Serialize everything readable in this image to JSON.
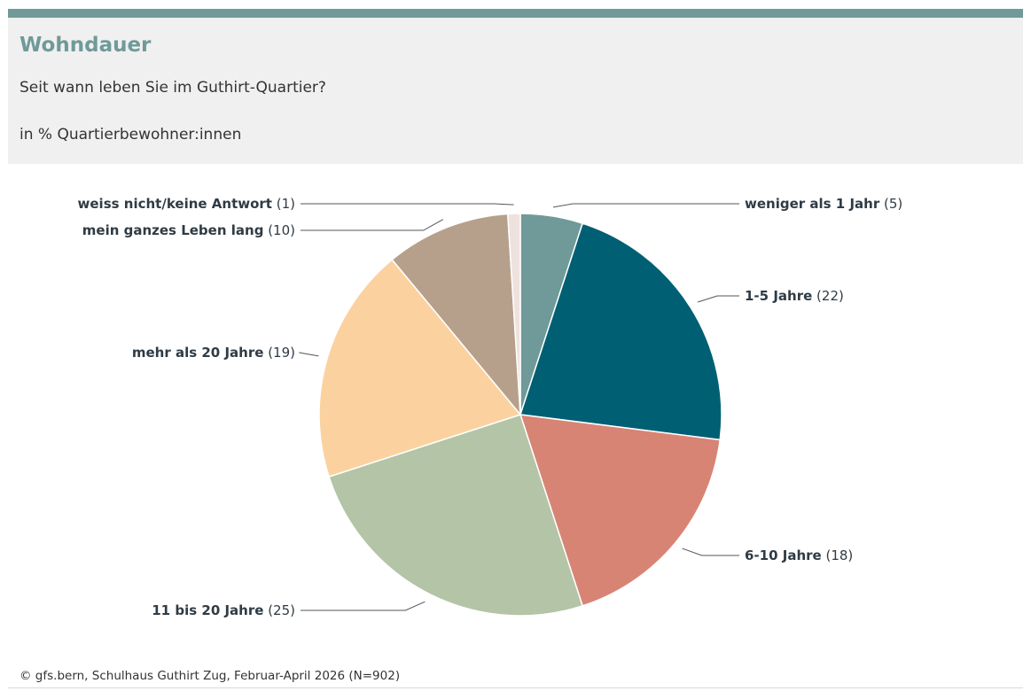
{
  "header": {
    "title": "Wohndauer",
    "subtitle": "Seit wann leben Sie im Guthirt-Quartier?",
    "unit": "in % Quartierbewohner:innen"
  },
  "footer": {
    "source": "© gfs.bern, Schulhaus Guthirt Zug, Februar-April 2026 (N=902)"
  },
  "chart_data": {
    "type": "pie",
    "title": "Wohndauer",
    "subtitle": "Seit wann leben Sie im Guthirt-Quartier?",
    "unit": "in % Quartierbewohner:innen",
    "categories": [
      "weniger als 1 Jahr",
      "1-5 Jahre",
      "6-10 Jahre",
      "11 bis 20 Jahre",
      "mehr als 20 Jahre",
      "mein ganzes Leben lang",
      "weiss nicht/keine Antwort"
    ],
    "values": [
      5,
      22,
      18,
      25,
      19,
      10,
      1
    ],
    "value_labels": [
      "(5)",
      "(22)",
      "(18)",
      "(25)",
      "(19)",
      "(10)",
      "(1)"
    ],
    "colors": [
      "#6f9a99",
      "#005f73",
      "#d88474",
      "#b4c4a6",
      "#fbd29f",
      "#b6a08c",
      "#eee2de"
    ],
    "start": "12 o'clock, clockwise",
    "legend": "none (direct labels with leader lines)"
  }
}
